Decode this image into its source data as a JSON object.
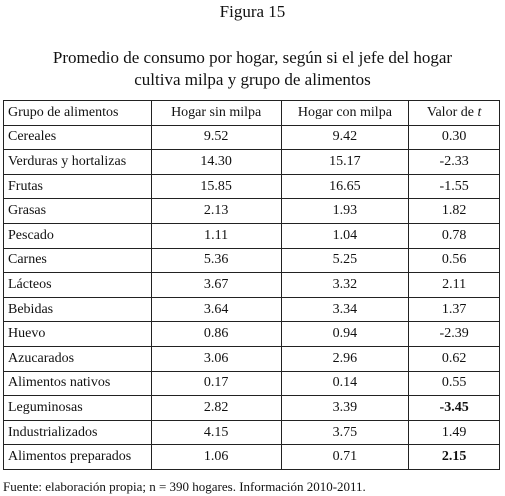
{
  "figure_label": "Figura 15",
  "title_lines": [
    "Promedio de consumo por hogar, según si el jefe del hogar",
    "cultiva milpa y grupo de alimentos"
  ],
  "table": {
    "headers": [
      "Grupo de alimentos",
      "Hogar sin milpa",
      "Hogar con milpa"
    ],
    "t_header": {
      "text": "Valor de ",
      "var": "t"
    },
    "rows": [
      {
        "cells": [
          "Cereales",
          "9.52",
          "9.42",
          "0.30"
        ]
      },
      {
        "cells": [
          "Verduras y hortalizas",
          "14.30",
          "15.17",
          "-2.33"
        ]
      },
      {
        "cells": [
          "Frutas",
          "15.85",
          "16.65",
          "-1.55"
        ]
      },
      {
        "cells": [
          "Grasas",
          "2.13",
          "1.93",
          "1.82"
        ]
      },
      {
        "cells": [
          "Pescado",
          "1.11",
          "1.04",
          "0.78"
        ]
      },
      {
        "cells": [
          "Carnes",
          "5.36",
          "5.25",
          "0.56"
        ]
      },
      {
        "cells": [
          "Lácteos",
          "3.67",
          "3.32",
          "2.11"
        ]
      },
      {
        "cells": [
          "Bebidas",
          "3.64",
          "3.34",
          "1.37"
        ]
      },
      {
        "cells": [
          "Huevo",
          "0.86",
          "0.94",
          "-2.39"
        ]
      },
      {
        "cells": [
          "Azucarados",
          "3.06",
          "2.96",
          "0.62"
        ]
      },
      {
        "cells": [
          "Alimentos nativos",
          "0.17",
          "0.14",
          "0.55"
        ]
      },
      {
        "cells": [
          "Leguminosas",
          "2.82",
          "3.39",
          "-3.45"
        ],
        "bold_t": true
      },
      {
        "cells": [
          "Industrializados",
          "4.15",
          "3.75",
          "1.49"
        ]
      },
      {
        "cells": [
          "Alimentos preparados",
          "1.06",
          "0.71",
          "2.15"
        ],
        "bold_t": true
      }
    ]
  },
  "source": "Fuente: elaboración propia; n = 390 hogares. Información 2010-2011."
}
